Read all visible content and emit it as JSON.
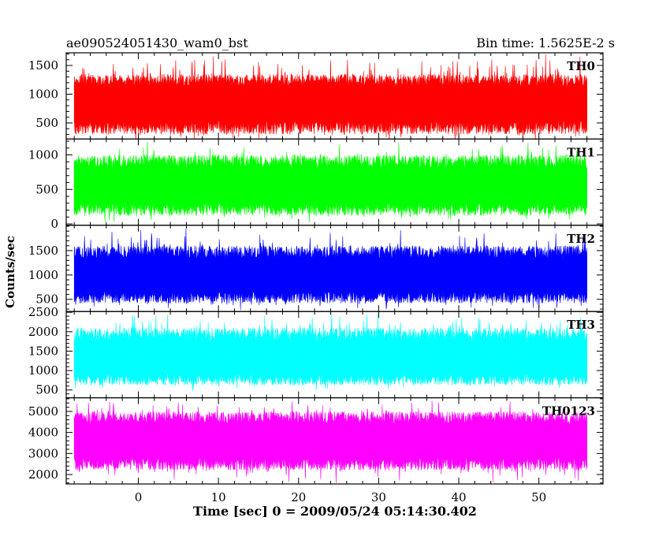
{
  "header": {
    "title": "ae090524051430_wam0_bst",
    "bin_time": "Bin time: 1.5625E-2 s"
  },
  "chart_data": {
    "type": "line",
    "xlabel": "Time [sec] 0 = 2009/05/24 05:14:30.402",
    "ylabel": "Counts/sec",
    "xlim": [
      -9,
      58
    ],
    "x_data_range": [
      -8.0,
      56.0
    ],
    "xticks": [
      0,
      10,
      20,
      30,
      40,
      50
    ],
    "series": [
      {
        "name": "TH0",
        "color": "#ff0000",
        "ylim": [
          220,
          1720
        ],
        "yticks": [
          500,
          1000,
          1500
        ],
        "mean": 850,
        "low": 300,
        "high": 1350,
        "peak_low": 150,
        "peak_high": 1720
      },
      {
        "name": "TH1",
        "color": "#00ff00",
        "ylim": [
          -20,
          1230
        ],
        "yticks": [
          0,
          500,
          1000
        ],
        "mean": 560,
        "low": 120,
        "high": 1000,
        "peak_low": 0,
        "peak_high": 1200
      },
      {
        "name": "TH2",
        "color": "#0000ff",
        "ylim": [
          250,
          2020
        ],
        "yticks": [
          500,
          1000,
          1500
        ],
        "mean": 1000,
        "low": 420,
        "high": 1600,
        "peak_low": 250,
        "peak_high": 2000
      },
      {
        "name": "TH3",
        "color": "#00ffff",
        "ylim": [
          300,
          2520
        ],
        "yticks": [
          500,
          1000,
          1500,
          2000,
          2500
        ],
        "mean": 1300,
        "low": 620,
        "high": 2100,
        "peak_low": 420,
        "peak_high": 2520
      },
      {
        "name": "TH0123",
        "color": "#ff00ff",
        "ylim": [
          1550,
          5650
        ],
        "yticks": [
          2000,
          3000,
          4000,
          5000
        ],
        "mean": 3600,
        "low": 2200,
        "high": 5000,
        "peak_low": 1550,
        "peak_high": 5600
      }
    ]
  }
}
